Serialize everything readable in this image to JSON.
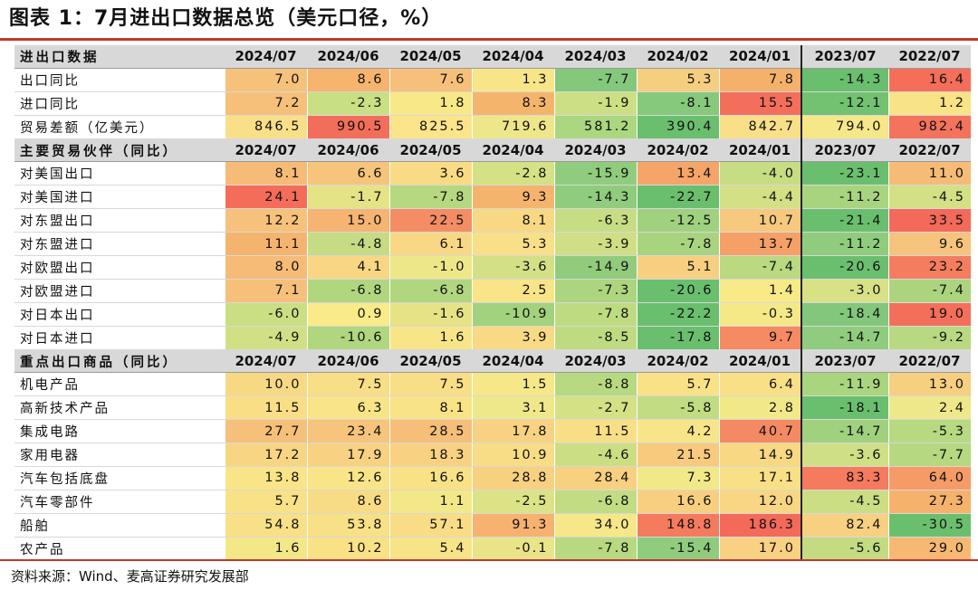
{
  "title": "图表 1：7月进出口数据总览（美元口径，%）",
  "source": "资料来源：Wind、麦高证券研究发展部",
  "columns": [
    "2024/07",
    "2024/06",
    "2024/05",
    "2024/04",
    "2024/03",
    "2024/02",
    "2024/01",
    "2023/07",
    "2022/07"
  ],
  "sections": [
    {
      "header": "进出口数据",
      "rows": [
        {
          "label": "出口同比",
          "values": [
            "7.0",
            "8.6",
            "7.6",
            "1.3",
            "-7.7",
            "5.3",
            "7.8",
            "-14.3",
            "16.4"
          ],
          "colors": [
            "#f6c17a",
            "#f6b46e",
            "#f6c07a",
            "#f8e587",
            "#84c87c",
            "#f6ce80",
            "#f5b16c",
            "#6abf6e",
            "#f46e5a"
          ]
        },
        {
          "label": "进口同比",
          "values": [
            "7.2",
            "-2.3",
            "1.8",
            "8.3",
            "-1.9",
            "-8.1",
            "15.5",
            "-12.1",
            "1.2"
          ],
          "colors": [
            "#f6c07a",
            "#c9df84",
            "#f8e888",
            "#f5b46c",
            "#cddf84",
            "#86c87c",
            "#f36f5c",
            "#72c271",
            "#f8e386"
          ]
        },
        {
          "label": "贸易差额（亿美元）",
          "values": [
            "846.5",
            "990.5",
            "825.5",
            "719.6",
            "581.2",
            "390.4",
            "842.7",
            "794.0",
            "982.4"
          ],
          "colors": [
            "#f9e088",
            "#f26e5b",
            "#fbe489",
            "#eee78a",
            "#aad77f",
            "#6abf6e",
            "#f9e088",
            "#f6e788",
            "#f3735d"
          ]
        }
      ]
    },
    {
      "header": "主要贸易伙伴（同比）",
      "rows": [
        {
          "label": "对美国出口",
          "values": [
            "8.1",
            "6.6",
            "3.6",
            "-2.8",
            "-15.9",
            "13.4",
            "-4.0",
            "-23.1",
            "11.0"
          ],
          "colors": [
            "#f6bb76",
            "#f6c47b",
            "#f8db84",
            "#d4e185",
            "#90cc7d",
            "#f5a568",
            "#c7dd84",
            "#6abf6e",
            "#f6bb76"
          ]
        },
        {
          "label": "对美国进口",
          "values": [
            "24.1",
            "-1.7",
            "-7.8",
            "9.3",
            "-14.3",
            "-22.7",
            "-4.4",
            "-11.2",
            "-4.5"
          ],
          "colors": [
            "#f46c5a",
            "#e4e386",
            "#b6d880",
            "#f5b46e",
            "#8fcc7d",
            "#6abf6e",
            "#d4e085",
            "#a9d47f",
            "#d3e085"
          ]
        },
        {
          "label": "对东盟出口",
          "values": [
            "12.2",
            "15.0",
            "22.5",
            "8.1",
            "-6.3",
            "-12.5",
            "10.7",
            "-21.4",
            "33.5"
          ],
          "colors": [
            "#f6c17a",
            "#f6b472",
            "#f48d63",
            "#f8d883",
            "#c7dd84",
            "#9fd17f",
            "#f6c97e",
            "#6abf6e",
            "#f3695a"
          ]
        },
        {
          "label": "对东盟进口",
          "values": [
            "11.1",
            "-4.8",
            "6.1",
            "5.3",
            "-3.9",
            "-7.8",
            "13.7",
            "-11.2",
            "9.6"
          ],
          "colors": [
            "#f5b46e",
            "#c5dc84",
            "#f8d885",
            "#f9df87",
            "#d0df85",
            "#a9d47f",
            "#f4a066",
            "#8fcc7d",
            "#f6c47c"
          ]
        },
        {
          "label": "对欧盟出口",
          "values": [
            "8.0",
            "4.1",
            "-1.0",
            "-3.6",
            "-14.9",
            "5.1",
            "-7.4",
            "-20.6",
            "23.2"
          ],
          "colors": [
            "#f6bb76",
            "#f8d683",
            "#ede788",
            "#d4e085",
            "#91cc7d",
            "#f8cf80",
            "#bad980",
            "#6abf6e",
            "#f47d5f"
          ]
        },
        {
          "label": "对欧盟进口",
          "values": [
            "7.1",
            "-6.8",
            "-6.8",
            "2.5",
            "-7.3",
            "-20.6",
            "1.4",
            "-3.0",
            "-7.4"
          ],
          "colors": [
            "#f6c07a",
            "#b1d680",
            "#b1d680",
            "#f9e588",
            "#add47f",
            "#6abf6e",
            "#f8ea89",
            "#d8e186",
            "#acd47f"
          ]
        },
        {
          "label": "对日本出口",
          "values": [
            "-6.0",
            "0.9",
            "-1.6",
            "-10.9",
            "-7.8",
            "-22.2",
            "-0.3",
            "-18.4",
            "19.0"
          ],
          "colors": [
            "#cadf84",
            "#f9eb89",
            "#e5e386",
            "#a3d27f",
            "#bfdb82",
            "#6abf6e",
            "#f4e888",
            "#82c77c",
            "#f46f5b"
          ]
        },
        {
          "label": "对日本进口",
          "values": [
            "-4.9",
            "-10.6",
            "1.6",
            "3.9",
            "-8.5",
            "-17.8",
            "9.7",
            "-14.7",
            "-9.2"
          ],
          "colors": [
            "#d2e085",
            "#b0d680",
            "#f8e588",
            "#f8da85",
            "#bfdb82",
            "#6abf6e",
            "#f58a63",
            "#8fcc7d",
            "#b8d981"
          ]
        }
      ]
    },
    {
      "header": "重点出口商品（同比）",
      "rows": [
        {
          "label": "机电产品",
          "values": [
            "10.0",
            "7.5",
            "7.5",
            "1.5",
            "-8.8",
            "5.7",
            "6.4",
            "-11.9",
            "13.0"
          ],
          "colors": [
            "#f8d983",
            "#f8de86",
            "#f8de86",
            "#f6e788",
            "#b7d981",
            "#f9e187",
            "#f9e087",
            "#aad57f",
            "#f6cf80"
          ]
        },
        {
          "label": "高新技术产品",
          "values": [
            "11.5",
            "6.3",
            "8.1",
            "3.1",
            "-2.7",
            "-5.8",
            "2.8",
            "-18.1",
            "2.4"
          ],
          "colors": [
            "#f9de86",
            "#f9e588",
            "#f9e387",
            "#eee88a",
            "#d4e185",
            "#c1dc82",
            "#f1e888",
            "#6abf6e",
            "#eee88a"
          ]
        },
        {
          "label": "集成电路",
          "values": [
            "27.7",
            "23.4",
            "28.5",
            "17.8",
            "11.5",
            "4.2",
            "40.7",
            "-14.7",
            "-5.3"
          ],
          "colors": [
            "#f6bf7a",
            "#f6c47c",
            "#f6be79",
            "#f8d282",
            "#f8df87",
            "#f7e689",
            "#f48a63",
            "#9fd17f",
            "#b7d981"
          ]
        },
        {
          "label": "家用电器",
          "values": [
            "17.2",
            "17.9",
            "18.3",
            "10.9",
            "-4.6",
            "21.5",
            "14.9",
            "-3.6",
            "-7.7"
          ],
          "colors": [
            "#f8d583",
            "#f8d282",
            "#f8d282",
            "#f8dd86",
            "#cbde84",
            "#f7ca7e",
            "#f8d883",
            "#cfdf85",
            "#b5d880"
          ]
        },
        {
          "label": "汽车包括底盘",
          "values": [
            "13.8",
            "12.6",
            "16.6",
            "28.8",
            "28.4",
            "7.3",
            "17.1",
            "83.3",
            "64.0"
          ],
          "colors": [
            "#f9e587",
            "#f9e588",
            "#f9e186",
            "#f7d080",
            "#f7d080",
            "#f1e888",
            "#f9e086",
            "#f57a5e",
            "#f69b66"
          ]
        },
        {
          "label": "汽车零部件",
          "values": [
            "5.7",
            "8.6",
            "1.1",
            "-2.5",
            "-6.8",
            "16.6",
            "12.0",
            "-4.5",
            "27.3"
          ],
          "colors": [
            "#f9e187",
            "#f8dc85",
            "#f3e888",
            "#dce286",
            "#c1dc82",
            "#f8cf80",
            "#f8d683",
            "#cbde84",
            "#f5b26d"
          ]
        },
        {
          "label": "船舶",
          "values": [
            "54.8",
            "53.8",
            "57.1",
            "91.3",
            "34.0",
            "148.8",
            "186.3",
            "82.4",
            "-30.5"
          ],
          "colors": [
            "#f8e086",
            "#f8e086",
            "#f8dd86",
            "#f7b26f",
            "#f6e788",
            "#f47b5e",
            "#f36a5b",
            "#f8d081",
            "#6abf6e"
          ]
        },
        {
          "label": "农产品",
          "values": [
            "1.6",
            "10.2",
            "5.4",
            "-0.1",
            "-7.8",
            "-15.4",
            "17.0",
            "-5.6",
            "29.0"
          ],
          "colors": [
            "#f3e888",
            "#f9e186",
            "#f8e488",
            "#e8e487",
            "#b7d981",
            "#8fcc7d",
            "#f8d282",
            "#c3dc82",
            "#f6b872"
          ]
        }
      ]
    }
  ]
}
